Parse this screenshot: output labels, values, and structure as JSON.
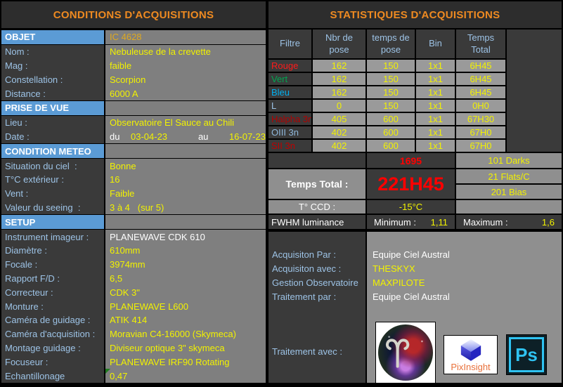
{
  "colors": {
    "accent_orange": "#ee8a21",
    "label_blue": "#9dc3e6",
    "section_blue": "#5b9bd5",
    "value_yellow": "#f2f200",
    "object_gold": "#dfa91f",
    "alert_red": "#ff0000",
    "panel_dark": "#3a3a3a",
    "panel_gray": "#7f7f7f"
  },
  "left_panel": {
    "title": "CONDITIONS D'ACQUISITIONS",
    "rows": [
      {
        "type": "section",
        "label": "OBJET",
        "value": "IC 4628",
        "vcolor": "gold"
      },
      {
        "type": "data",
        "label": "Nom :",
        "value": "Nebuleuse de la crevette"
      },
      {
        "type": "data",
        "label": "Mag :",
        "value": "faible"
      },
      {
        "type": "data",
        "label": "Constellation :",
        "value": "Scorpion"
      },
      {
        "type": "data",
        "label": "Distance :",
        "value": "6000 A"
      },
      {
        "type": "section",
        "label": "PRISE DE VUE",
        "value": ""
      },
      {
        "type": "data",
        "label": "Lieu :",
        "value": "Observatoire El Sauce au Chili"
      },
      {
        "type": "data",
        "label": "Date :",
        "parts": [
          {
            "text": "du",
            "color": "white"
          },
          {
            "text": "03-04-23",
            "color": "yellow"
          },
          {
            "text": "au",
            "color": "white"
          },
          {
            "text": "16-07-23",
            "color": "yellow"
          }
        ]
      },
      {
        "type": "section",
        "label": "CONDITION METEO",
        "value": ""
      },
      {
        "type": "data",
        "label": "Situation du ciel  :",
        "value": "Bonne"
      },
      {
        "type": "data",
        "label": "T°C extérieur :",
        "value": "16"
      },
      {
        "type": "data",
        "label": "Vent :",
        "value": "Faible"
      },
      {
        "type": "data",
        "label": "Valeur du seeing  :",
        "value": "3 à 4   (sur 5)"
      },
      {
        "type": "section",
        "label": "SETUP",
        "value": ""
      },
      {
        "type": "data",
        "label": "Instrument imageur :",
        "value": "PLANEWAVE CDK 610",
        "vcolor": "white"
      },
      {
        "type": "data",
        "label": "Diamètre :",
        "value": "610mm"
      },
      {
        "type": "data",
        "label": "Focale :",
        "value": "3974mm"
      },
      {
        "type": "data",
        "label": "Rapport F/D :",
        "value": "6,5"
      },
      {
        "type": "data",
        "label": "Correcteur :",
        "value": "CDK 3\""
      },
      {
        "type": "data",
        "label": "Monture :",
        "value": "PLANEWAVE L600"
      },
      {
        "type": "data",
        "label": "Caméra de guidage :",
        "value": "ATIK 414"
      },
      {
        "type": "data",
        "label": "Caméra d'acquisition :",
        "value": "Moravian C4-16000 (Skymeca)"
      },
      {
        "type": "data",
        "label": "Montage guidage :",
        "value": "Diviseur optique 3\" skymeca"
      },
      {
        "type": "data",
        "label": "Focuseur :",
        "value": "PLANEWAVE IRF90 Rotating"
      },
      {
        "type": "data",
        "label": "Echantillonage",
        "value": "0,47",
        "marker": true
      }
    ]
  },
  "right_panel": {
    "title": "STATISTIQUES D'ACQUISITIONS",
    "table": {
      "headers": [
        "Filtre",
        "Nbr de pose",
        "temps de pose",
        "Bin",
        "Temps Total"
      ],
      "rows": [
        {
          "filter": "Rouge",
          "color": "#ff1a1a",
          "nbr": "162",
          "temps": "150",
          "bin": "1x1",
          "total": "6H45"
        },
        {
          "filter": "Vert",
          "color": "#00a651",
          "nbr": "162",
          "temps": "150",
          "bin": "1x1",
          "total": "6H45"
        },
        {
          "filter": "Bleu",
          "color": "#00b0f0",
          "nbr": "162",
          "temps": "150",
          "bin": "1x1",
          "total": "6H45"
        },
        {
          "filter": "L",
          "color": "#9dc3e6",
          "nbr": "0",
          "temps": "150",
          "bin": "1x1",
          "total": "0H0"
        },
        {
          "filter": "Halpha 3n",
          "color": "#b30000",
          "nbr": "405",
          "temps": "600",
          "bin": "1x1",
          "total": "67H30"
        },
        {
          "filter": "OIII 3n",
          "color": "#8fb8dc",
          "nbr": "402",
          "temps": "600",
          "bin": "1x1",
          "total": "67H0"
        },
        {
          "filter": "SII 3n",
          "color": "#c00000",
          "nbr": "402",
          "temps": "600",
          "bin": "1x1",
          "total": "67H0"
        }
      ]
    },
    "summary": {
      "total_frames": "1695",
      "darks": "101 Darks",
      "temps_total_label": "Temps Total :",
      "temps_total_value": "221H45",
      "flats": "21 Flats/C",
      "bias": "201 Bias",
      "ccd_label": "T° CCD :",
      "ccd_value": "-15°C",
      "fwhm_label": "FWHM luminance",
      "min_label": "Minimum :",
      "min_value": "1,11",
      "max_label": "Maximum :",
      "max_value": "1,6"
    },
    "credits": [
      {
        "label": "Acquisiton Par :",
        "value": "Equipe Ciel Austral",
        "vcolor": "white"
      },
      {
        "label": "Acquisiton avec :",
        "value": "THESKYX",
        "vcolor": "yellow"
      },
      {
        "label": "Gestion Observatoire",
        "value": "MAXPILOTE",
        "vcolor": "yellow"
      },
      {
        "label": "Traitement par :",
        "value": "Equipe Ciel Austral",
        "vcolor": "white"
      }
    ],
    "traitement_avec_label": "Traitement avec :",
    "logos": {
      "pixinsight_text": "PixInsight",
      "photoshop_text": "Ps"
    }
  }
}
